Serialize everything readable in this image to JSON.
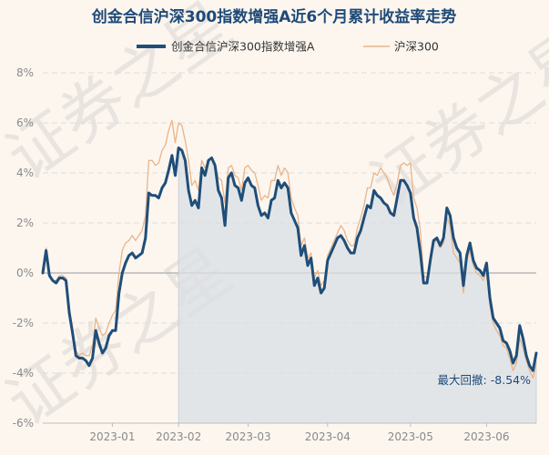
{
  "chart_data": {
    "type": "line",
    "title": "创金合信沪深300指数增强A近6个月累计收益率走势",
    "watermark": "证券之星",
    "legend_position": "top",
    "series": [
      {
        "name": "创金合信沪深300指数增强A",
        "color": "#1f4e79",
        "values": [
          0.0,
          0.9,
          -0.1,
          -0.3,
          -0.4,
          -0.2,
          -0.2,
          -0.3,
          -1.6,
          -2.4,
          -3.3,
          -3.4,
          -3.4,
          -3.5,
          -3.7,
          -3.4,
          -2.3,
          -2.8,
          -3.2,
          -3.0,
          -2.5,
          -2.3,
          -2.3,
          -0.8,
          0.0,
          0.4,
          0.7,
          0.8,
          0.6,
          0.7,
          0.8,
          1.4,
          3.2,
          3.1,
          3.1,
          3.0,
          3.4,
          3.6,
          4.1,
          4.7,
          3.9,
          5.0,
          4.9,
          4.5,
          3.3,
          2.7,
          2.9,
          2.6,
          4.2,
          3.9,
          4.5,
          4.6,
          4.3,
          3.3,
          3.0,
          1.9,
          3.8,
          4.0,
          3.5,
          3.4,
          2.9,
          3.6,
          3.8,
          3.5,
          3.4,
          2.7,
          2.3,
          2.4,
          2.2,
          2.9,
          3.0,
          3.7,
          3.4,
          3.6,
          3.4,
          2.4,
          2.1,
          1.8,
          0.7,
          1.1,
          0.3,
          0.6,
          -0.5,
          -0.2,
          -0.8,
          -0.6,
          0.5,
          0.8,
          1.1,
          1.4,
          1.5,
          1.3,
          1.0,
          0.8,
          0.8,
          1.4,
          1.7,
          2.2,
          2.7,
          2.6,
          3.3,
          3.1,
          3.0,
          2.8,
          2.7,
          2.4,
          2.3,
          3.0,
          3.7,
          3.7,
          3.5,
          3.2,
          2.2,
          1.8,
          0.8,
          -0.4,
          -0.4,
          0.5,
          1.3,
          1.4,
          1.1,
          1.4,
          2.6,
          2.3,
          1.4,
          1.0,
          0.8,
          -0.5,
          0.7,
          1.2,
          0.5,
          0.2,
          0.1,
          -0.1,
          0.4,
          -1.0,
          -1.8,
          -2.0,
          -2.2,
          -2.7,
          -2.8,
          -3.1,
          -3.6,
          -3.3,
          -2.1,
          -2.6,
          -3.3,
          -3.7,
          -3.9,
          -3.2
        ]
      },
      {
        "name": "沪深300",
        "color": "#e8b58a",
        "values": [
          0.2,
          1.0,
          0.0,
          -0.3,
          -0.3,
          -0.1,
          -0.1,
          -0.2,
          -1.4,
          -2.2,
          -3.1,
          -3.3,
          -3.2,
          -3.3,
          -3.3,
          -2.9,
          -1.8,
          -2.2,
          -2.5,
          -2.4,
          -2.0,
          -1.7,
          -1.5,
          0.0,
          0.9,
          1.2,
          1.3,
          1.5,
          1.3,
          1.5,
          1.7,
          2.3,
          4.5,
          4.5,
          4.3,
          4.4,
          4.9,
          5.1,
          5.7,
          6.1,
          5.2,
          6.0,
          5.9,
          5.3,
          4.5,
          3.5,
          3.7,
          3.3,
          4.5,
          4.2,
          4.5,
          4.6,
          4.4,
          3.8,
          3.7,
          2.8,
          4.2,
          4.3,
          3.9,
          3.8,
          3.3,
          4.2,
          4.3,
          4.1,
          4.0,
          3.5,
          2.9,
          3.1,
          3.0,
          3.7,
          3.7,
          4.3,
          3.9,
          4.2,
          4.0,
          3.0,
          2.6,
          2.3,
          1.1,
          1.4,
          0.6,
          0.8,
          -0.2,
          0.1,
          -0.5,
          -0.3,
          0.7,
          1.0,
          1.3,
          1.6,
          1.9,
          1.7,
          1.3,
          1.1,
          1.1,
          1.8,
          2.2,
          2.7,
          3.4,
          3.4,
          4.0,
          3.9,
          4.2,
          4.0,
          3.8,
          3.4,
          3.1,
          3.6,
          4.3,
          4.4,
          4.3,
          4.4,
          3.0,
          2.6,
          1.7,
          -0.1,
          -0.2,
          0.6,
          1.2,
          1.3,
          1.0,
          1.2,
          2.2,
          1.9,
          0.8,
          0.6,
          0.4,
          -0.8,
          0.5,
          0.9,
          0.3,
          0.0,
          -0.1,
          -0.3,
          0.1,
          -1.3,
          -2.0,
          -2.3,
          -2.5,
          -2.9,
          -3.0,
          -3.4,
          -3.9,
          -3.6,
          -2.6,
          -3.0,
          -3.5,
          -3.9,
          -4.2,
          -3.6
        ]
      }
    ],
    "x_ticks": [
      {
        "label": "2023-01",
        "index": 21
      },
      {
        "label": "2023-02",
        "index": 41
      },
      {
        "label": "2023-03",
        "index": 62
      },
      {
        "label": "2023-04",
        "index": 86
      },
      {
        "label": "2023-05",
        "index": 111
      },
      {
        "label": "2023-06",
        "index": 134
      }
    ],
    "y_ticks": [
      "8%",
      "6%",
      "4%",
      "2%",
      "0%",
      "-2%",
      "-4%",
      "-6%"
    ],
    "ylim": [
      -6,
      8
    ],
    "grid": true,
    "shaded_region": {
      "label": "最大回撤",
      "start_index": 41,
      "end_index": 149
    },
    "annotation": {
      "label": "最大回撤:",
      "value": "-8.54%"
    }
  }
}
